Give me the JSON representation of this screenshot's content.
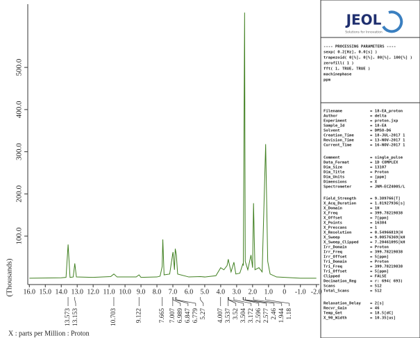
{
  "chart_data": {
    "type": "line",
    "ylabel": "(Thousands)",
    "xlabel": "X : parts per Million : Proton",
    "xlim": [
      16.1,
      -2.1
    ],
    "ylim": [
      -15,
      650
    ],
    "xticks": [
      {
        "value": 16,
        "label": "16.0"
      },
      {
        "value": 15,
        "label": "15.0"
      },
      {
        "value": 14,
        "label": "14.0"
      },
      {
        "value": 13,
        "label": "13.0"
      },
      {
        "value": 12,
        "label": "12.0"
      },
      {
        "value": 11,
        "label": "11.0"
      },
      {
        "value": 10,
        "label": "10.0"
      },
      {
        "value": 9,
        "label": "9.0"
      },
      {
        "value": 8,
        "label": "8.0"
      },
      {
        "value": 7,
        "label": "7.0"
      },
      {
        "value": 6,
        "label": "6.0"
      },
      {
        "value": 5,
        "label": "5.0"
      },
      {
        "value": 4,
        "label": "4.0"
      },
      {
        "value": 3,
        "label": "3.0"
      },
      {
        "value": 2,
        "label": "2.0"
      },
      {
        "value": 1,
        "label": "1.0"
      },
      0,
      {
        "value": -1,
        "label": "-1.0"
      },
      {
        "value": -2,
        "label": "-2.0"
      }
    ],
    "yticks": [
      {
        "value": 100,
        "label": "100.0"
      },
      {
        "value": 200,
        "label": "200.0"
      },
      {
        "value": 300,
        "label": "300.0"
      },
      {
        "value": 400,
        "label": "400.0"
      },
      {
        "value": 500,
        "label": "500.0"
      }
    ],
    "x": [
      16.0,
      14.0,
      13.7,
      13.57,
      13.45,
      13.25,
      13.15,
      13.05,
      12.0,
      10.9,
      10.7,
      10.5,
      9.3,
      9.12,
      9.0,
      8.0,
      7.8,
      7.67,
      7.63,
      7.55,
      7.2,
      7.01,
      6.99,
      6.9,
      6.85,
      6.78,
      6.7,
      6.0,
      5.27,
      5.0,
      4.3,
      4.0,
      3.8,
      3.6,
      3.54,
      3.52,
      3.5,
      3.35,
      3.17,
      3.05,
      2.8,
      2.6,
      2.58,
      2.5,
      2.46,
      2.3,
      2.1,
      2.0,
      1.94,
      1.85,
      1.6,
      1.4,
      1.18,
      1.05,
      0.9,
      0.5,
      0,
      -1.0,
      -2.0
    ],
    "series": [
      {
        "color": "#3f7f1f",
        "values": [
          0,
          1,
          2,
          80,
          2,
          3,
          35,
          3,
          2,
          4,
          10,
          3,
          3,
          8,
          2,
          3,
          5,
          28,
          92,
          8,
          10,
          58,
          62,
          20,
          70,
          55,
          10,
          3,
          4,
          3,
          6,
          25,
          20,
          30,
          42,
          45,
          40,
          15,
          38,
          10,
          12,
          35,
          30,
          630,
          40,
          20,
          55,
          25,
          178,
          20,
          25,
          15,
          318,
          40,
          10,
          3,
          2,
          0,
          0
        ]
      }
    ],
    "peak_labels": [
      13.573,
      13.153,
      10.703,
      9.122,
      7.665,
      7.007,
      6.989,
      6.847,
      6.779,
      5.27,
      4.007,
      3.537,
      3.52,
      3.504,
      3.172,
      2.596,
      2.577,
      2.46,
      1.944,
      1.18
    ]
  },
  "panel": {
    "logo": "JEOL",
    "logo_subtitle": "Solutions for Innovation",
    "processing": [
      "---- PROCESSING PARAMETERS ----",
      "sexp( 0.2[Hz], 0.0[s] )",
      "trapezoid( 0[%], 0[%], 80[%], 100[%] )",
      "zerofill( 1 )",
      "fft( 1, TRUE, TRUE )",
      "machinephase",
      "ppm"
    ],
    "groups": [
      [
        [
          "Filename",
          "= 18-EA_proton"
        ],
        [
          "Author",
          "= delta"
        ],
        [
          "Experiment",
          "= proton.jxp"
        ],
        [
          "Sample_Id",
          "= 18-EA"
        ],
        [
          "Solvent",
          "= DMSO-D6"
        ],
        [
          "Creation_Time",
          "= 18-JUL-2017 1"
        ],
        [
          "Revision_Time",
          "= 13-NOV-2017 1"
        ],
        [
          "Current_Time",
          "= 16-NOV-2017 1"
        ]
      ],
      [
        [
          "Comment",
          "= single_pulse"
        ],
        [
          "Data_Format",
          "= 1D COMPLEX"
        ],
        [
          "Dim_Size",
          "= 13107"
        ],
        [
          "Dim_Title",
          "= Proton"
        ],
        [
          "Dim_Units",
          "= [ppm]"
        ],
        [
          "Dimensions",
          "= X"
        ],
        [
          "Spectrometer",
          "= JNM-ECZ400S/L"
        ]
      ],
      [
        [
          "Field_Strength",
          "= 9.389766[T]"
        ],
        [
          "X_Acq_Duration",
          "= 1.81927936[s]"
        ],
        [
          "X_Domain",
          "= 1H"
        ],
        [
          "X_Freq",
          "= 399.78219838"
        ],
        [
          "X_Offset",
          "= 7[ppm]"
        ],
        [
          "X_Points",
          "= 16384"
        ],
        [
          "X_Prescans",
          "= 1"
        ],
        [
          "X_Resolution",
          "= 0.54966819[H"
        ],
        [
          "X_Sweep",
          "= 9.00576369[kH"
        ],
        [
          "X_Sweep_Clipped",
          "= 7.20461095[kH"
        ],
        [
          "Irr_Domain",
          "= Proton"
        ],
        [
          "Irr_Freq",
          "= 399.78219838"
        ],
        [
          "Irr_Offset",
          "= 5[ppm]"
        ],
        [
          "Tri_Domain",
          "= Proton"
        ],
        [
          "Tri_Freq",
          "= 399.78219838"
        ],
        [
          "Tri_Offset",
          "= 5[ppm]"
        ],
        [
          "Clipped",
          "= FALSE"
        ],
        [
          "Decimation_Reg",
          "= r: 694( 693)"
        ],
        [
          "Scans",
          "= 512"
        ],
        [
          "Total_Scans",
          "= 512"
        ]
      ],
      [
        [
          "Relaxation_Delay",
          "= 2[s]"
        ],
        [
          "Recvr_Gain",
          "= 46"
        ],
        [
          "Temp_Get",
          "= 18.5[dC]"
        ],
        [
          "X_90_Width",
          "= 10.35[us]"
        ]
      ]
    ]
  }
}
